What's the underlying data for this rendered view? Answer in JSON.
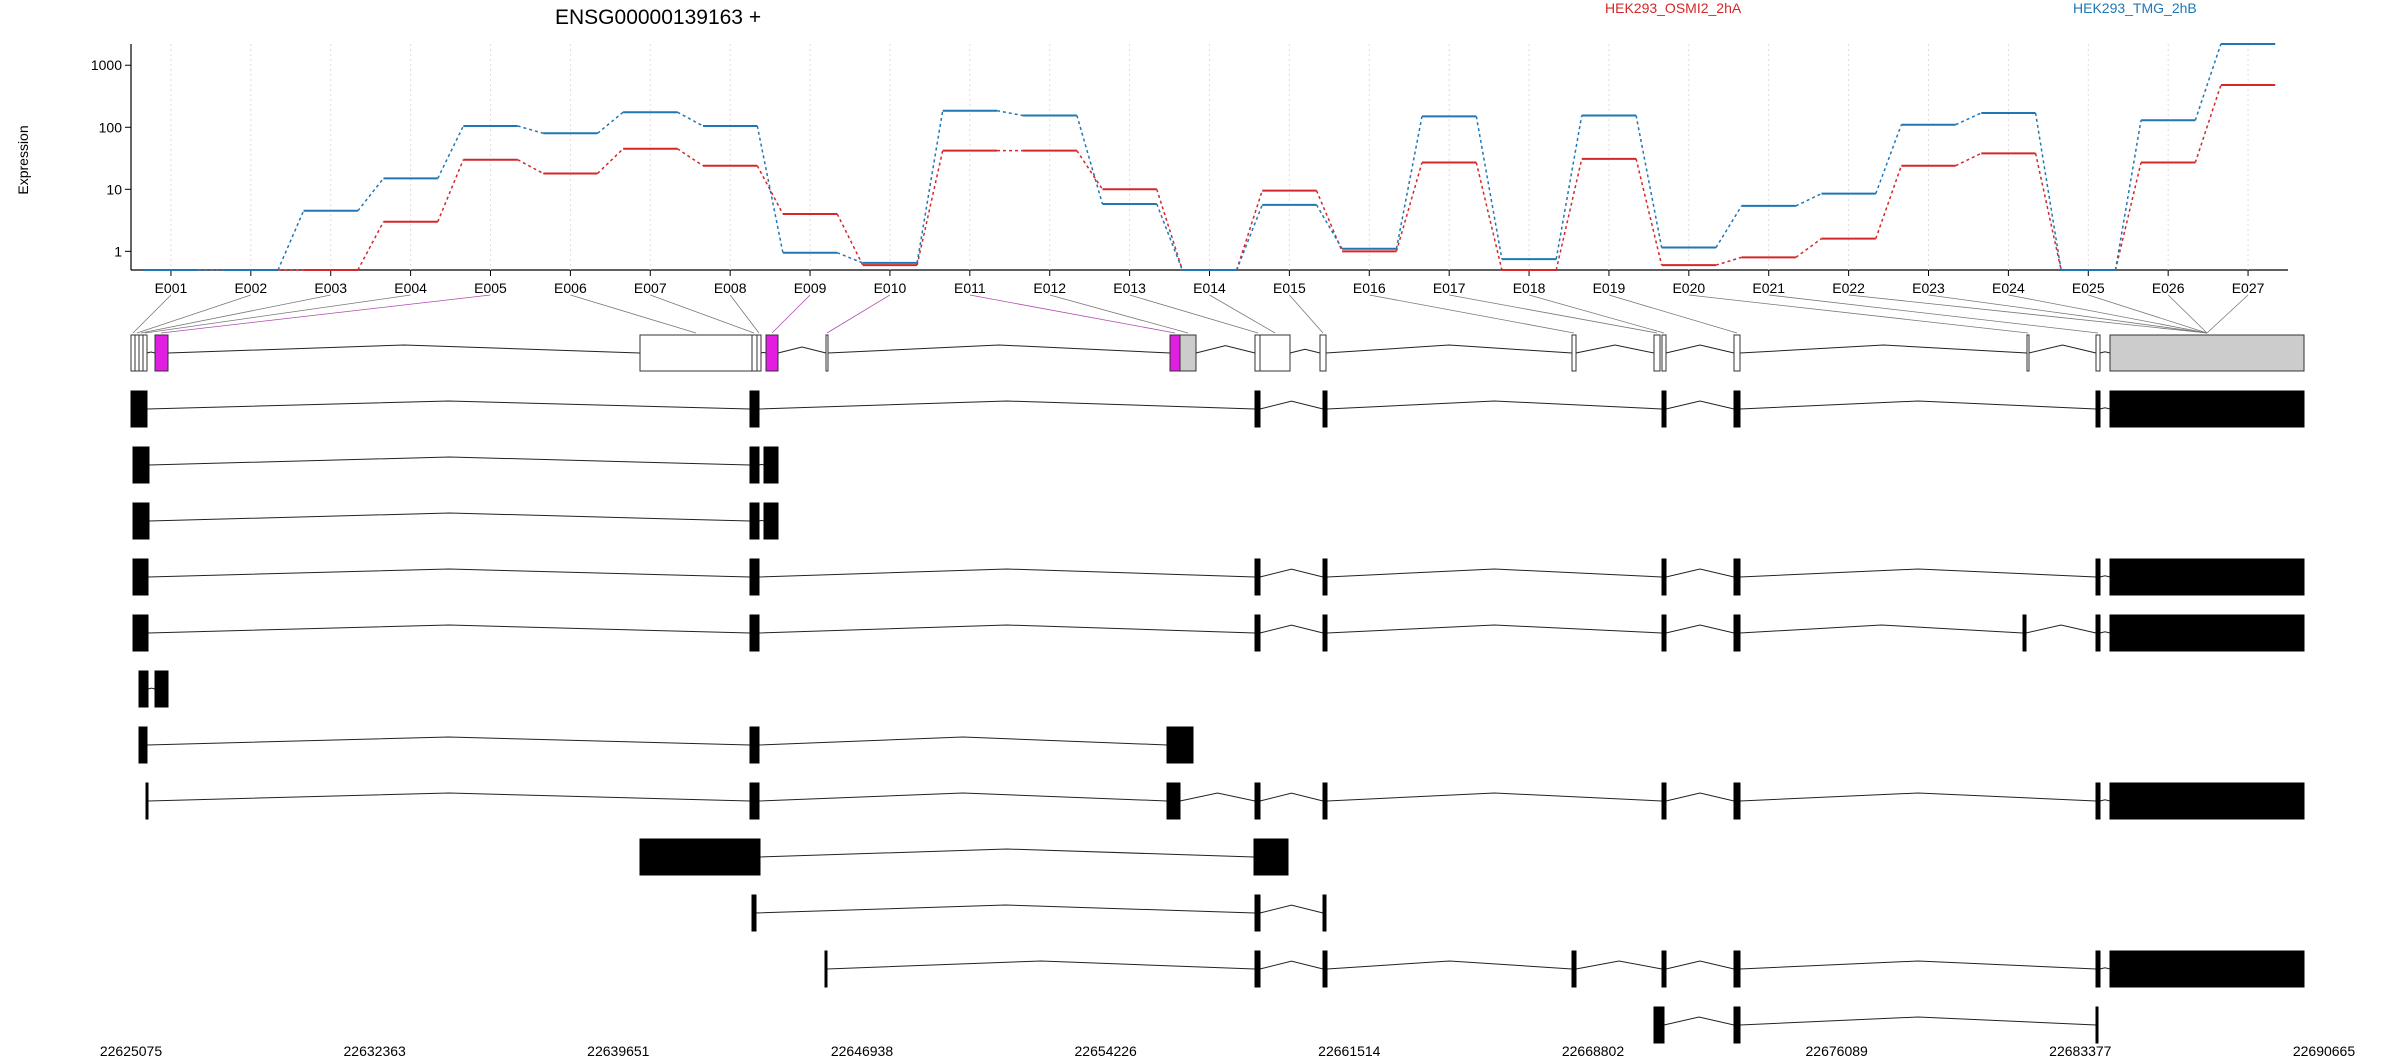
{
  "chart_data": {
    "type": "line",
    "title": "ENSG00000139163 +",
    "ylabel": "Expression",
    "yscale": "log",
    "yticks": [
      "1",
      "10",
      "100",
      "1000"
    ],
    "yticks_values": [
      1,
      10,
      100,
      1000
    ],
    "ylim": [
      0.5,
      2200
    ],
    "grid": "vertical dotted",
    "legend_placement": "top",
    "categories": [
      "E001",
      "E002",
      "E003",
      "E004",
      "E005",
      "E006",
      "E007",
      "E008",
      "E009",
      "E010",
      "E011",
      "E012",
      "E013",
      "E014",
      "E015",
      "E016",
      "E017",
      "E018",
      "E019",
      "E020",
      "E021",
      "E022",
      "E023",
      "E024",
      "E025",
      "E026",
      "E027"
    ],
    "series": [
      {
        "name": "HEK293_OSMI2_2hA",
        "color": "#d62728",
        "values": [
          0.5,
          0.5,
          0.5,
          3,
          30,
          18,
          45,
          24,
          4,
          0.6,
          42,
          42,
          10,
          0.5,
          9.5,
          1,
          27,
          0.5,
          31,
          0.6,
          0.8,
          1.6,
          24,
          38,
          0.5,
          27,
          480
        ]
      },
      {
        "name": "HEK293_TMG_2hB",
        "color": "#1f77b4",
        "values": [
          0.5,
          0.5,
          4.5,
          15,
          105,
          80,
          175,
          105,
          0.95,
          0.65,
          185,
          155,
          5.8,
          0.5,
          5.6,
          1.1,
          150,
          0.75,
          155,
          1.15,
          5.4,
          8.5,
          110,
          170,
          0.5,
          130,
          2200
        ]
      }
    ],
    "genomic_ticks": [
      "22625075",
      "22632363",
      "22639651",
      "22646938",
      "22654226",
      "22661514",
      "22668802",
      "22676089",
      "22683377",
      "22690665"
    ],
    "gene_model": {
      "exon_fill_highlight": "#e11ee1",
      "exon_fill_partial": "#cccccc",
      "transcript_fill": "#000000"
    }
  }
}
